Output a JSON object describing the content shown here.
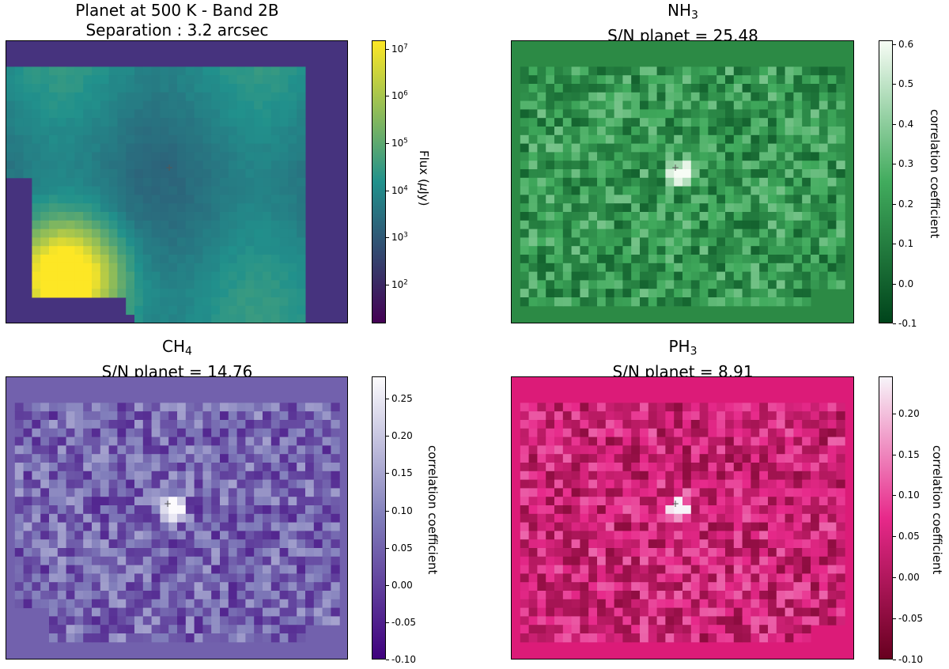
{
  "chart_data": [
    {
      "type": "heatmap",
      "title": "Planet at 500 K - Band 2B",
      "subtitle": "Separation : 3.2 arcsec",
      "colormap": "viridis",
      "colorbar": {
        "scale": "log",
        "label": "Flux (μJy)",
        "label_parts": [
          "Flux (",
          "μ",
          "Jy)"
        ],
        "range": [
          15,
          15000000
        ],
        "ticks": [
          {
            "base": "10",
            "exp": "2",
            "value": 100
          },
          {
            "base": "10",
            "exp": "3",
            "value": 1000
          },
          {
            "base": "10",
            "exp": "4",
            "value": 10000
          },
          {
            "base": "10",
            "exp": "5",
            "value": 100000
          },
          {
            "base": "10",
            "exp": "6",
            "value": 1000000
          },
          {
            "base": "10",
            "exp": "7",
            "value": 10000000
          }
        ]
      },
      "marker": "planet position (center)",
      "colors": {
        "low": "#440154",
        "mid": "#21918c",
        "high": "#fde725",
        "background": "#46337e"
      }
    },
    {
      "type": "heatmap",
      "molecule": "NH",
      "molecule_sub": "3",
      "title": "NH3",
      "subtitle": "S/N planet = 25.48",
      "colormap": "Greens_r",
      "colorbar": {
        "scale": "linear",
        "label": "correlation coefficient",
        "range": [
          -0.1,
          0.61
        ],
        "ticks": [
          "-0.1",
          "0.0",
          "0.1",
          "0.2",
          "0.3",
          "0.4",
          "0.5",
          "0.6"
        ]
      },
      "colors": {
        "low": "#00441b",
        "mid": "#41ab5d",
        "high": "#f7fcf5",
        "background": "#2c8a45"
      }
    },
    {
      "type": "heatmap",
      "molecule": "CH",
      "molecule_sub": "4",
      "title": "CH4",
      "subtitle": "S/N planet = 14.76",
      "colormap": "Purples_r",
      "colorbar": {
        "scale": "linear",
        "label": "correlation coefficient",
        "range": [
          -0.1,
          0.28
        ],
        "ticks": [
          "-0.10",
          "-0.05",
          "0.00",
          "0.05",
          "0.10",
          "0.15",
          "0.20",
          "0.25"
        ]
      },
      "colors": {
        "low": "#3f007d",
        "mid": "#807dba",
        "high": "#fcfbfd",
        "background": "#7261ad"
      }
    },
    {
      "type": "heatmap",
      "molecule": "PH",
      "molecule_sub": "3",
      "title": "PH3",
      "subtitle": "S/N planet = 8.91",
      "colormap": "PuRd_r",
      "colorbar": {
        "scale": "linear",
        "label": "correlation coefficient",
        "range": [
          -0.1,
          0.245
        ],
        "ticks": [
          "-0.10",
          "-0.05",
          "0.00",
          "0.05",
          "0.10",
          "0.15",
          "0.20"
        ]
      },
      "colors": {
        "low": "#67001f",
        "mid": "#e7298a",
        "high": "#f7f4f9",
        "background": "#dc1b78"
      }
    }
  ]
}
